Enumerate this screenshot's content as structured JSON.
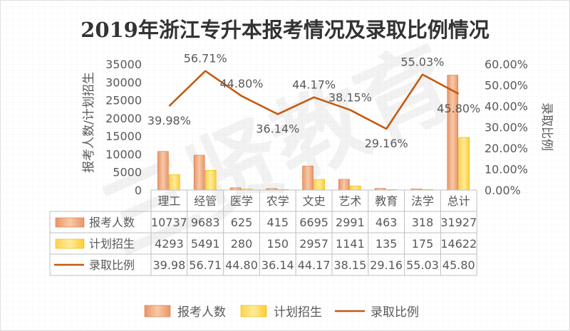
{
  "chart_data": {
    "type": "bar",
    "title": "2019年浙江专升本报考情况及录取比例情况",
    "categories": [
      "理工",
      "经管",
      "医学",
      "农学",
      "文史",
      "艺术",
      "教育",
      "法学",
      "总计"
    ],
    "series": [
      {
        "name": "报考人数",
        "type": "bar",
        "axis": "left",
        "color": "#f4b183",
        "values": [
          10737,
          9683,
          625,
          415,
          6695,
          2991,
          463,
          318,
          31927
        ]
      },
      {
        "name": "计划招生",
        "type": "bar",
        "axis": "left",
        "color": "#ffd966",
        "values": [
          4293,
          5491,
          280,
          150,
          2957,
          1141,
          135,
          175,
          14622
        ]
      },
      {
        "name": "录取比例",
        "type": "line",
        "axis": "right",
        "color": "#c55a11",
        "values": [
          39.98,
          56.71,
          44.8,
          36.14,
          44.17,
          38.15,
          29.16,
          55.03,
          45.8
        ],
        "point_labels": [
          "39.98%",
          "56.71%",
          "44.80%",
          "36.14%",
          "44.17%",
          "38.15%",
          "29.16%",
          "55.03%",
          "45.80%"
        ],
        "table_values": [
          "39.98",
          "56.71",
          "44.80",
          "36.14",
          "44.17",
          "38.15",
          "29.16",
          "55.03",
          "45.80"
        ]
      }
    ],
    "ylabel_left": "报考人数/计划招生",
    "ylabel_right": "录取比例",
    "ylim_left": [
      0,
      35000
    ],
    "yticks_left": [
      "0",
      "5000",
      "10000",
      "15000",
      "20000",
      "25000",
      "30000",
      "35000"
    ],
    "ylim_right": [
      0,
      60
    ],
    "yticks_right": [
      "0.00%",
      "10.00%",
      "20.00%",
      "30.00%",
      "40.00%",
      "50.00%",
      "60.00%"
    ],
    "grid": true,
    "legend": "bottom",
    "data_table": true
  },
  "watermark": "三贤教育"
}
